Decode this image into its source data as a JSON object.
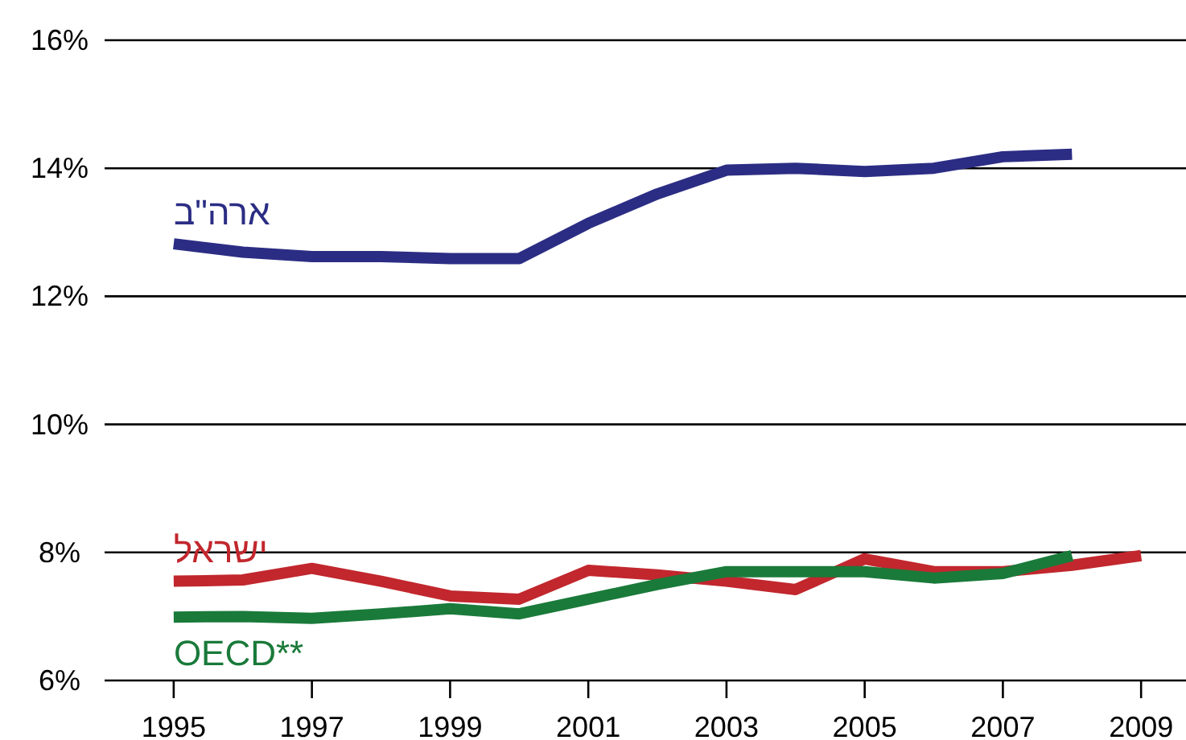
{
  "chart_data": {
    "type": "line",
    "x": [
      1995,
      1996,
      1997,
      1998,
      1999,
      2000,
      2001,
      2002,
      2003,
      2004,
      2005,
      2006,
      2007,
      2008,
      2009
    ],
    "series": [
      {
        "name": "ארה\"ב",
        "color": "#2b2d84",
        "values": [
          12.82,
          12.69,
          12.62,
          12.62,
          12.59,
          12.59,
          13.14,
          13.6,
          13.97,
          14.0,
          13.95,
          14.0,
          14.18,
          14.22,
          null
        ]
      },
      {
        "name": "ישראל",
        "color": "#c1272d",
        "values": [
          7.55,
          7.57,
          7.75,
          7.55,
          7.32,
          7.27,
          7.72,
          7.65,
          7.55,
          7.42,
          7.9,
          7.7,
          7.7,
          7.8,
          7.95
        ]
      },
      {
        "name": "OECD**",
        "color": "#1a7a3a",
        "values": [
          6.99,
          7.0,
          6.97,
          7.04,
          7.12,
          7.04,
          7.27,
          7.5,
          7.7,
          7.7,
          7.7,
          7.6,
          7.67,
          7.95,
          null
        ]
      }
    ],
    "xlim": [
      1994,
      2009.65
    ],
    "xticks": [
      1995,
      1997,
      1999,
      2001,
      2003,
      2005,
      2007,
      2009
    ],
    "ylim": [
      6,
      16
    ],
    "yticks": [
      {
        "value": 6,
        "label": "6%"
      },
      {
        "value": 8,
        "label": "8%"
      },
      {
        "value": 10,
        "label": "10%"
      },
      {
        "value": 12,
        "label": "12%"
      },
      {
        "value": 14,
        "label": "14%"
      },
      {
        "value": 16,
        "label": "16%"
      }
    ],
    "grid": "y",
    "legend": false,
    "marker": "none",
    "line_style": "solid"
  }
}
